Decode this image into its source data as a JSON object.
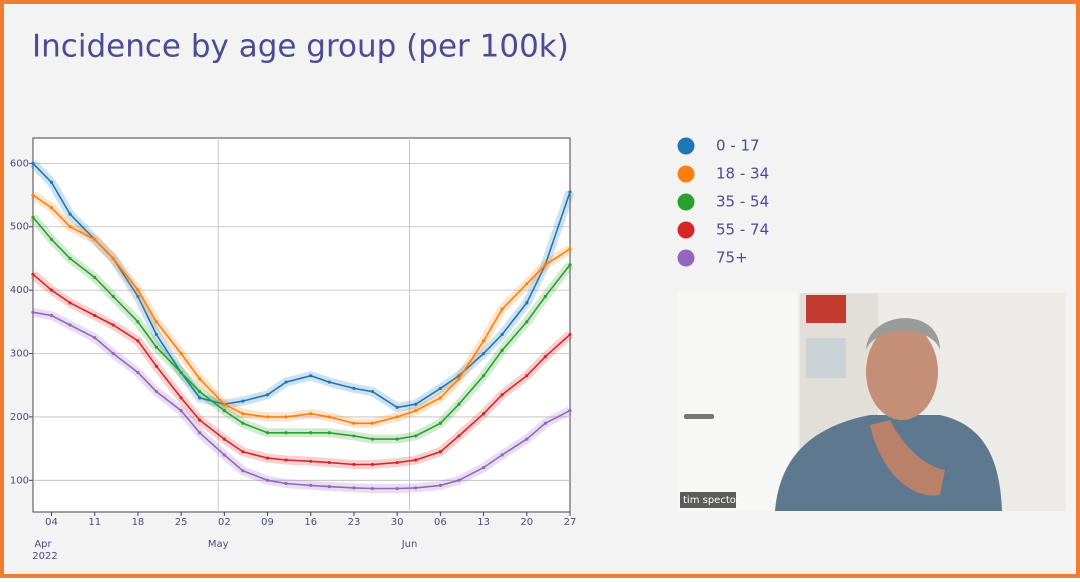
{
  "chart_data": {
    "type": "line",
    "title": "Incidence by age group (per 100k)",
    "x": [
      "2022-04-01",
      "2022-04-04",
      "2022-04-07",
      "2022-04-11",
      "2022-04-14",
      "2022-04-18",
      "2022-04-21",
      "2022-04-25",
      "2022-04-28",
      "2022-05-02",
      "2022-05-05",
      "2022-05-09",
      "2022-05-12",
      "2022-05-16",
      "2022-05-19",
      "2022-05-23",
      "2022-05-26",
      "2022-05-30",
      "2022-06-02",
      "2022-06-06",
      "2022-06-09",
      "2022-06-13",
      "2022-06-16",
      "2022-06-20",
      "2022-06-23",
      "2022-06-27"
    ],
    "series": [
      {
        "name": "0 - 17",
        "color": "#1f77b4",
        "values": [
          600,
          570,
          520,
          480,
          450,
          390,
          330,
          270,
          230,
          220,
          225,
          235,
          255,
          265,
          255,
          245,
          240,
          215,
          220,
          245,
          265,
          300,
          330,
          380,
          440,
          555
        ]
      },
      {
        "name": "18 - 34",
        "color": "#ff7f0e",
        "values": [
          550,
          530,
          500,
          480,
          450,
          400,
          350,
          300,
          260,
          220,
          205,
          200,
          200,
          205,
          200,
          190,
          190,
          200,
          210,
          230,
          260,
          320,
          370,
          410,
          440,
          465
        ]
      },
      {
        "name": "35 - 54",
        "color": "#2ca02c",
        "values": [
          515,
          480,
          450,
          420,
          390,
          350,
          310,
          270,
          240,
          210,
          190,
          175,
          175,
          175,
          175,
          170,
          165,
          165,
          170,
          190,
          220,
          265,
          305,
          350,
          390,
          440
        ]
      },
      {
        "name": "55 - 74",
        "color": "#d62728",
        "values": [
          425,
          400,
          380,
          360,
          345,
          320,
          280,
          230,
          195,
          165,
          145,
          135,
          132,
          130,
          128,
          125,
          125,
          128,
          132,
          145,
          170,
          205,
          235,
          265,
          295,
          330
        ]
      },
      {
        "name": "75+",
        "color": "#9467bd",
        "values": [
          365,
          360,
          345,
          325,
          300,
          270,
          240,
          210,
          175,
          140,
          115,
          100,
          95,
          92,
          90,
          88,
          87,
          87,
          88,
          92,
          100,
          120,
          140,
          165,
          190,
          210
        ]
      }
    ],
    "xlim": [
      "2022-04-01",
      "2022-06-27"
    ],
    "xticks": [
      {
        "value": "2022-04-04",
        "label": "04"
      },
      {
        "value": "2022-04-11",
        "label": "11"
      },
      {
        "value": "2022-04-18",
        "label": "18"
      },
      {
        "value": "2022-04-25",
        "label": "25"
      },
      {
        "value": "2022-05-02",
        "label": "02"
      },
      {
        "value": "2022-05-09",
        "label": "09"
      },
      {
        "value": "2022-05-16",
        "label": "16"
      },
      {
        "value": "2022-05-23",
        "label": "23"
      },
      {
        "value": "2022-05-30",
        "label": "30"
      },
      {
        "value": "2022-06-06",
        "label": "06"
      },
      {
        "value": "2022-06-13",
        "label": "13"
      },
      {
        "value": "2022-06-20",
        "label": "20"
      },
      {
        "value": "2022-06-27",
        "label": "27"
      }
    ],
    "month_ticks": [
      {
        "value": "2022-04-01",
        "label": "Apr"
      },
      {
        "value": "2022-05-01",
        "label": "May"
      },
      {
        "value": "2022-06-01",
        "label": "Jun"
      }
    ],
    "year_label": "2022",
    "ylim": [
      50,
      640
    ],
    "yticks": [
      100,
      200,
      300,
      400,
      500,
      600
    ],
    "grid": true
  },
  "video": {
    "name": "tim spector"
  }
}
